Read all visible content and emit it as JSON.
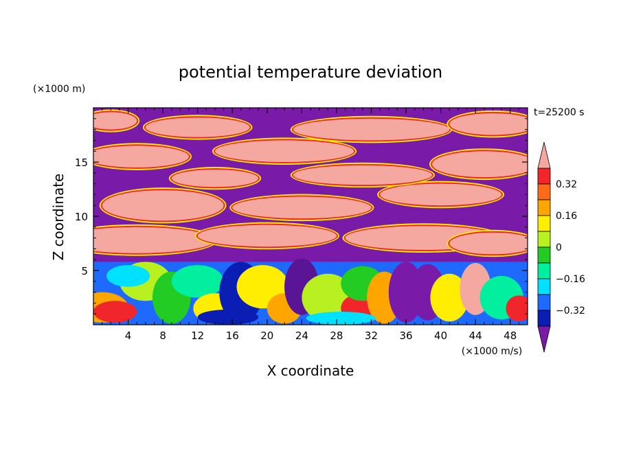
{
  "chart_data": {
    "type": "heatmap",
    "title": "potential temperature deviation",
    "xlabel": "X coordinate",
    "ylabel": "Z coordinate",
    "x_units": "(×1000 m/s)",
    "y_units": "(×1000 m)",
    "time_label": "t=25200 s",
    "xlim": [
      0,
      50
    ],
    "ylim": [
      0,
      20
    ],
    "x_ticks": [
      4,
      8,
      12,
      16,
      20,
      24,
      28,
      32,
      36,
      40,
      44,
      48
    ],
    "y_ticks": [
      5,
      10,
      15
    ],
    "colorbar": {
      "levels": [
        -0.4,
        -0.32,
        -0.24,
        -0.16,
        -0.08,
        0,
        0.08,
        0.16,
        0.24,
        0.32,
        0.4
      ],
      "tick_labels": [
        {
          "value": 0.32,
          "label": "0.32"
        },
        {
          "value": 0.16,
          "label": "0.16"
        },
        {
          "value": 0,
          "label": "0"
        },
        {
          "value": -0.16,
          "label": "−0.16"
        },
        {
          "value": -0.32,
          "label": "−0.32"
        }
      ],
      "colors_top_to_bottom": [
        "#f5a8a0",
        "#f0262a",
        "#ff6a1a",
        "#ffa500",
        "#ffee00",
        "#b8f020",
        "#22cc22",
        "#00f0a0",
        "#00e0ff",
        "#1e6aff",
        "#0a1eb4",
        "#5a1496",
        "#7a1aa8"
      ],
      "extend": "both"
    },
    "warm_color": "#f5a8a0",
    "cold_color": "#7a1aa8"
  }
}
